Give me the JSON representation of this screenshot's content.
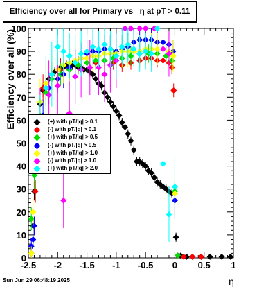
{
  "title": "Efficiency over all for Primary vs   η at pT > 0.11",
  "footer": "Sun Jun 29 06:48:19 2025",
  "chart_data": {
    "type": "scatter",
    "xlabel": "η",
    "ylabel": "Efficiency over all (%)",
    "xlim": [
      -2.5,
      1
    ],
    "ylim": [
      0,
      100
    ],
    "xticks": [
      "-2.5",
      "-2",
      "-1.5",
      "-1",
      "-0.5",
      "0",
      "0.5",
      "1"
    ],
    "yticks": [
      "0",
      "10",
      "20",
      "30",
      "40",
      "50",
      "60",
      "70",
      "80",
      "90",
      "100"
    ],
    "legend_position": "middle-left",
    "series": [
      {
        "name": "(+) with pT/|q| > 0.1",
        "color": "#000000",
        "points": [
          [
            -2.45,
            2
          ],
          [
            -2.42,
            14
          ],
          [
            -2.4,
            29
          ],
          [
            -2.35,
            56
          ],
          [
            -2.3,
            67
          ],
          [
            -2.25,
            73
          ],
          [
            -2.2,
            76
          ],
          [
            -2.15,
            78
          ],
          [
            -2.1,
            80
          ],
          [
            -2.05,
            81
          ],
          [
            -2.0,
            82
          ],
          [
            -1.95,
            83
          ],
          [
            -1.9,
            83
          ],
          [
            -1.85,
            84
          ],
          [
            -1.8,
            84
          ],
          [
            -1.75,
            84
          ],
          [
            -1.7,
            84
          ],
          [
            -1.65,
            83
          ],
          [
            -1.6,
            83
          ],
          [
            -1.55,
            82
          ],
          [
            -1.5,
            82
          ],
          [
            -1.45,
            81
          ],
          [
            -1.4,
            80
          ],
          [
            -1.35,
            78
          ],
          [
            -1.3,
            76
          ],
          [
            -1.25,
            75
          ],
          [
            -1.2,
            72
          ],
          [
            -1.15,
            70
          ],
          [
            -1.1,
            68
          ],
          [
            -1.05,
            66
          ],
          [
            -1.0,
            64
          ],
          [
            -0.95,
            62
          ],
          [
            -0.9,
            59
          ],
          [
            -0.85,
            57
          ],
          [
            -0.8,
            54
          ],
          [
            -0.75,
            51
          ],
          [
            -0.7,
            47
          ],
          [
            -0.65,
            42
          ],
          [
            -0.6,
            42
          ],
          [
            -0.55,
            41
          ],
          [
            -0.5,
            40
          ],
          [
            -0.45,
            38
          ],
          [
            -0.4,
            37
          ],
          [
            -0.35,
            35
          ],
          [
            -0.3,
            33
          ],
          [
            -0.25,
            32
          ],
          [
            -0.2,
            31
          ],
          [
            -0.15,
            30
          ],
          [
            -0.1,
            29
          ],
          [
            -0.05,
            28
          ],
          [
            0.02,
            9
          ],
          [
            0.05,
            1
          ],
          [
            0.1,
            1
          ],
          [
            0.2,
            0.5
          ],
          [
            0.3,
            0.5
          ],
          [
            0.45,
            0.5
          ],
          [
            0.6,
            0.5
          ],
          [
            0.8,
            0.5
          ],
          [
            0.95,
            0.5
          ]
        ],
        "err": [
          2,
          3,
          4,
          4,
          3,
          3,
          3,
          2,
          2,
          2,
          2,
          2,
          2,
          2,
          2,
          2,
          2,
          2,
          2,
          2,
          2,
          2,
          2,
          2,
          2,
          2,
          2,
          2,
          2,
          2,
          2,
          2,
          2,
          2,
          2,
          2,
          2,
          2,
          2,
          2,
          2,
          2,
          2,
          2,
          2,
          2,
          2,
          2,
          2,
          2,
          2,
          0,
          0,
          0,
          0,
          0,
          0,
          0,
          0
        ]
      },
      {
        "name": "(-) with pT/|q| > 0.1",
        "color": "#ff0000",
        "points": [
          [
            -2.38,
            29
          ],
          [
            -2.25,
            74
          ],
          [
            -2.1,
            80
          ],
          [
            -1.95,
            82
          ],
          [
            -1.8,
            82
          ],
          [
            -1.65,
            84
          ],
          [
            -1.5,
            85
          ],
          [
            -1.35,
            85
          ],
          [
            -1.2,
            86
          ],
          [
            -1.05,
            85
          ],
          [
            -0.9,
            84
          ],
          [
            -0.75,
            85
          ],
          [
            -0.6,
            86
          ],
          [
            -0.5,
            87
          ],
          [
            -0.4,
            87
          ],
          [
            -0.3,
            86
          ],
          [
            -0.2,
            86
          ],
          [
            -0.1,
            85
          ],
          [
            -0.05,
            83
          ],
          [
            -0.02,
            73
          ],
          [
            0.05,
            1
          ],
          [
            0.15,
            0.5
          ],
          [
            0.3,
            0.5
          ],
          [
            0.45,
            0.5
          ]
        ],
        "err": [
          5,
          6,
          5,
          5,
          4,
          4,
          3,
          3,
          3,
          3,
          3,
          3,
          3,
          3,
          3,
          3,
          3,
          3,
          3,
          3,
          0,
          0,
          0,
          0
        ]
      },
      {
        "name": "(+) with pT/|q| > 0.5",
        "color": "#00dd00",
        "points": [
          [
            -2.45,
            17
          ],
          [
            -2.4,
            36
          ],
          [
            -2.3,
            62
          ],
          [
            -2.2,
            72
          ],
          [
            -2.1,
            78
          ],
          [
            -1.95,
            80
          ],
          [
            -1.8,
            82
          ],
          [
            -1.65,
            84
          ],
          [
            -1.5,
            85
          ],
          [
            -1.35,
            86
          ],
          [
            -1.2,
            86
          ],
          [
            -1.05,
            87
          ],
          [
            -0.9,
            87
          ],
          [
            -0.75,
            88
          ],
          [
            -0.6,
            89
          ],
          [
            -0.45,
            89
          ],
          [
            -0.3,
            89
          ],
          [
            -0.15,
            88
          ],
          [
            -0.05,
            86
          ],
          [
            0,
            29
          ],
          [
            0.05,
            1
          ]
        ],
        "err": [
          5,
          6,
          6,
          6,
          5,
          5,
          4,
          4,
          4,
          4,
          4,
          4,
          4,
          4,
          4,
          4,
          4,
          4,
          4,
          4,
          0
        ]
      },
      {
        "name": "(-) with pT/|q| > 0.5",
        "color": "#0000ff",
        "points": [
          [
            -2.45,
            5
          ],
          [
            -2.42,
            8
          ],
          [
            -2.4,
            14
          ],
          [
            -2.25,
            62
          ],
          [
            -2.15,
            74
          ],
          [
            -2.0,
            78
          ],
          [
            -1.9,
            80
          ],
          [
            -1.8,
            83
          ],
          [
            -1.7,
            85
          ],
          [
            -1.6,
            87
          ],
          [
            -1.5,
            89
          ],
          [
            -1.4,
            90
          ],
          [
            -1.3,
            90
          ],
          [
            -1.2,
            91
          ],
          [
            -1.1,
            91
          ],
          [
            -1.0,
            90
          ],
          [
            -0.9,
            91
          ],
          [
            -0.8,
            92
          ],
          [
            -0.7,
            94
          ],
          [
            -0.6,
            95
          ],
          [
            -0.5,
            95
          ],
          [
            -0.4,
            95
          ],
          [
            -0.3,
            94
          ],
          [
            -0.2,
            94
          ],
          [
            -0.1,
            93
          ],
          [
            -0.03,
            90
          ],
          [
            0.0,
            25
          ]
        ],
        "err": [
          3,
          3,
          4,
          7,
          7,
          6,
          6,
          6,
          6,
          6,
          6,
          6,
          6,
          6,
          6,
          6,
          6,
          6,
          6,
          5,
          5,
          5,
          5,
          5,
          5,
          5,
          8
        ]
      },
      {
        "name": "(+) with pT/|q| > 1.0",
        "color": "#ffff00",
        "points": [
          [
            -2.45,
            2
          ],
          [
            -2.42,
            20
          ],
          [
            -2.3,
            68
          ],
          [
            -2.2,
            76
          ],
          [
            -2.1,
            80
          ],
          [
            -2.0,
            82
          ],
          [
            -1.9,
            84
          ],
          [
            -1.8,
            85
          ],
          [
            -1.7,
            86
          ],
          [
            -1.6,
            87
          ],
          [
            -1.5,
            87
          ],
          [
            -1.4,
            88
          ],
          [
            -1.3,
            88
          ],
          [
            -1.2,
            89
          ],
          [
            -1.1,
            89
          ],
          [
            -1.0,
            89
          ],
          [
            -0.9,
            90
          ],
          [
            -0.8,
            90
          ],
          [
            -0.7,
            90
          ],
          [
            -0.6,
            90
          ],
          [
            -0.5,
            91
          ],
          [
            -0.4,
            91
          ],
          [
            -0.3,
            91
          ],
          [
            -0.2,
            91
          ],
          [
            -0.1,
            90
          ],
          [
            -0.03,
            88
          ],
          [
            0.0,
            28
          ]
        ],
        "err": [
          3,
          6,
          10,
          8,
          8,
          8,
          8,
          8,
          8,
          8,
          7,
          7,
          7,
          7,
          7,
          7,
          7,
          7,
          7,
          7,
          7,
          7,
          7,
          7,
          7,
          7,
          10
        ]
      },
      {
        "name": "(-) with pT/|q| > 1.0",
        "color": "#ff00ff",
        "points": [
          [
            -2.3,
            59
          ],
          [
            -2.15,
            71
          ],
          [
            -2.0,
            75
          ],
          [
            -1.9,
            25
          ],
          [
            -1.8,
            63
          ],
          [
            -1.7,
            79
          ],
          [
            -1.6,
            82
          ],
          [
            -1.45,
            83
          ],
          [
            -1.3,
            83
          ],
          [
            -1.2,
            80
          ],
          [
            -1.1,
            84
          ],
          [
            -1.0,
            86
          ],
          [
            -0.85,
            100
          ],
          [
            -0.75,
            100
          ],
          [
            -0.6,
            100
          ],
          [
            -0.5,
            100
          ],
          [
            -0.35,
            100
          ],
          [
            -0.2,
            91
          ],
          [
            -0.1,
            89
          ]
        ],
        "err": [
          15,
          15,
          14,
          12,
          14,
          12,
          12,
          12,
          12,
          12,
          12,
          12,
          0,
          0,
          0,
          0,
          0,
          10,
          10
        ]
      },
      {
        "name": "(+) with pT/|q| > 2.0",
        "color": "#00ffff",
        "points": [
          [
            -2.3,
            56
          ],
          [
            -2.2,
            74
          ],
          [
            -2.1,
            80
          ],
          [
            -2.0,
            92
          ],
          [
            -1.9,
            90
          ],
          [
            -1.8,
            88
          ],
          [
            -1.7,
            85
          ],
          [
            -1.6,
            89
          ],
          [
            -1.5,
            90
          ],
          [
            -1.4,
            92
          ],
          [
            -1.3,
            91
          ],
          [
            -1.2,
            93
          ],
          [
            -1.1,
            91
          ],
          [
            -1.0,
            88
          ],
          [
            -0.9,
            92
          ],
          [
            -0.8,
            93
          ],
          [
            -0.7,
            91
          ],
          [
            -0.6,
            89
          ],
          [
            -0.5,
            90
          ],
          [
            -0.4,
            89
          ],
          [
            -0.3,
            100
          ],
          [
            -0.2,
            41
          ],
          [
            -0.1,
            19
          ],
          [
            0.0,
            31
          ]
        ],
        "err": [
          15,
          14,
          14,
          8,
          10,
          10,
          12,
          10,
          10,
          8,
          8,
          8,
          8,
          10,
          8,
          8,
          8,
          8,
          8,
          8,
          0,
          20,
          12,
          14
        ]
      }
    ]
  }
}
